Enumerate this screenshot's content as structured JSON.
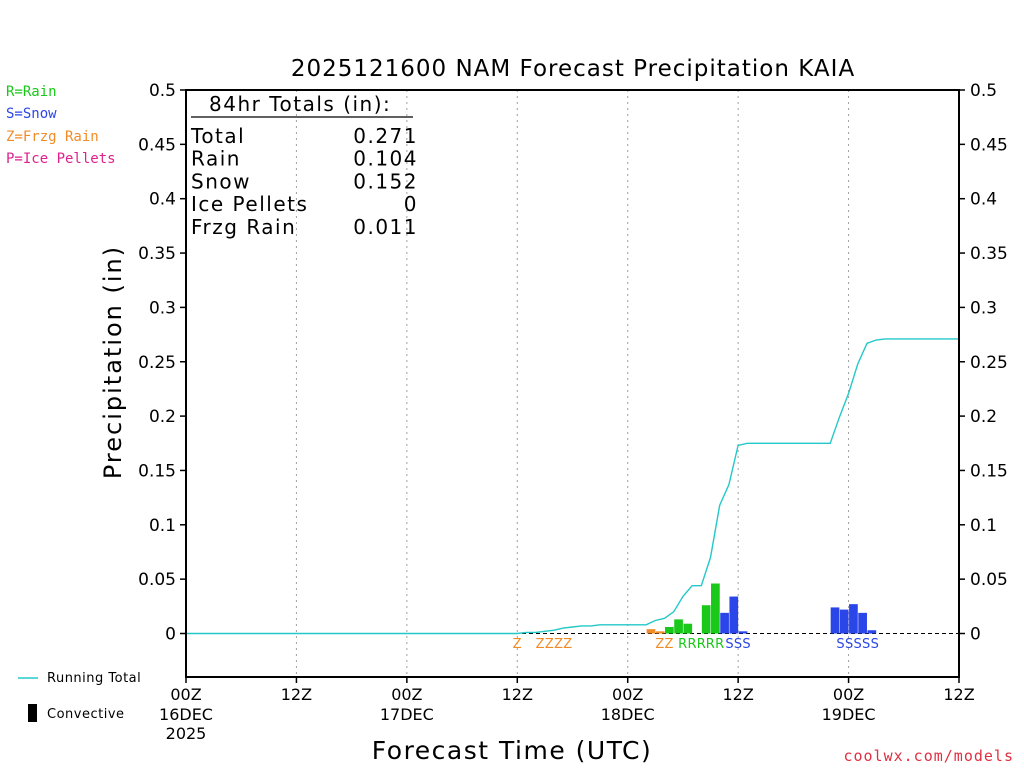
{
  "chart_data": {
    "type": "bar",
    "title": "2025121600 NAM Forecast Precipitation KAIA",
    "xlabel": "Forecast Time (UTC)",
    "ylabel": "Precipitation (in)",
    "ylim": [
      0,
      0.5
    ],
    "xlim_hours": [
      0,
      84
    ],
    "y_ticks": [
      "0",
      "0.05",
      "0.1",
      "0.15",
      "0.2",
      "0.25",
      "0.3",
      "0.35",
      "0.4",
      "0.45",
      "0.5"
    ],
    "y_tick_values": [
      0,
      0.05,
      0.1,
      0.15,
      0.2,
      0.25,
      0.3,
      0.35,
      0.4,
      0.45,
      0.5
    ],
    "x_ticks": [
      {
        "hour": 0,
        "time": "00Z",
        "date": "16DEC",
        "year": "2025"
      },
      {
        "hour": 12,
        "time": "12Z",
        "date": "",
        "year": ""
      },
      {
        "hour": 24,
        "time": "00Z",
        "date": "17DEC",
        "year": ""
      },
      {
        "hour": 36,
        "time": "12Z",
        "date": "",
        "year": ""
      },
      {
        "hour": 48,
        "time": "00Z",
        "date": "18DEC",
        "year": ""
      },
      {
        "hour": 60,
        "time": "12Z",
        "date": "",
        "year": ""
      },
      {
        "hour": 72,
        "time": "00Z",
        "date": "19DEC",
        "year": ""
      },
      {
        "hour": 84,
        "time": "12Z",
        "date": "",
        "year": ""
      }
    ],
    "legend_types": [
      {
        "label": "R=Rain",
        "color": "#19c819"
      },
      {
        "label": "S=Snow",
        "color": "#2b46e8"
      },
      {
        "label": "Z=Frzg Rain",
        "color": "#f08c28"
      },
      {
        "label": "P=Ice Pellets",
        "color": "#e0208e"
      }
    ],
    "legend_bottom": {
      "running_total": "Running Total",
      "convective": "Convective"
    },
    "totals_box": {
      "header": "84hr Totals (in):",
      "rows": [
        {
          "label": "Total",
          "value": "0.271"
        },
        {
          "label": "Rain",
          "value": "0.104"
        },
        {
          "label": "Snow",
          "value": "0.152"
        },
        {
          "label": "Ice Pellets",
          "value": "0"
        },
        {
          "label": "Frzg Rain",
          "value": "0.011"
        }
      ]
    },
    "series": [
      {
        "name": "Frzg Rain",
        "color": "#f08c28",
        "bars": [
          {
            "hour": 51,
            "value": 0.004
          },
          {
            "hour": 52,
            "value": 0.002
          }
        ]
      },
      {
        "name": "Rain",
        "color": "#19c819",
        "bars": [
          {
            "hour": 53,
            "value": 0.006
          },
          {
            "hour": 54,
            "value": 0.013
          },
          {
            "hour": 55,
            "value": 0.009
          },
          {
            "hour": 57,
            "value": 0.026
          },
          {
            "hour": 58,
            "value": 0.046
          }
        ]
      },
      {
        "name": "Snow",
        "color": "#2b46e8",
        "bars": [
          {
            "hour": 59,
            "value": 0.019
          },
          {
            "hour": 60,
            "value": 0.034
          },
          {
            "hour": 61,
            "value": 0.002
          },
          {
            "hour": 71,
            "value": 0.024
          },
          {
            "hour": 72,
            "value": 0.022
          },
          {
            "hour": 73,
            "value": 0.027
          },
          {
            "hour": 74,
            "value": 0.019
          },
          {
            "hour": 75,
            "value": 0.003
          }
        ]
      }
    ],
    "running_total": {
      "name": "Running Total",
      "color": "#24c8c8",
      "x": [
        0,
        36,
        37,
        38,
        39,
        40,
        41,
        42,
        43,
        44,
        45,
        46,
        47,
        48,
        49,
        50,
        51,
        52,
        53,
        54,
        55,
        56,
        57,
        58,
        59,
        60,
        61,
        62,
        63,
        64,
        65,
        66,
        67,
        68,
        69,
        70,
        71,
        72,
        73,
        74,
        75,
        76,
        77,
        78,
        79,
        80,
        81,
        82,
        83,
        84
      ],
      "y": [
        0,
        0,
        0.001,
        0.001,
        0.002,
        0.003,
        0.005,
        0.006,
        0.007,
        0.007,
        0.008,
        0.008,
        0.008,
        0.008,
        0.008,
        0.008,
        0.012,
        0.014,
        0.02,
        0.034,
        0.044,
        0.044,
        0.07,
        0.118,
        0.137,
        0.173,
        0.175,
        0.175,
        0.175,
        0.175,
        0.175,
        0.175,
        0.175,
        0.175,
        0.175,
        0.175,
        0.199,
        0.221,
        0.248,
        0.267,
        0.27,
        0.271,
        0.271,
        0.271,
        0.271,
        0.271,
        0.271,
        0.271,
        0.271,
        0.271
      ]
    },
    "type_labels": [
      {
        "text": "Z",
        "hour": 36,
        "color": "#f08c28"
      },
      {
        "text": "ZZZZ",
        "hour": 40,
        "color": "#f08c28"
      },
      {
        "text": "ZZ",
        "hour": 52,
        "color": "#f08c28"
      },
      {
        "text": "RRR",
        "hour": 55,
        "color": "#19c819"
      },
      {
        "text": "RR",
        "hour": 57.5,
        "color": "#19c819"
      },
      {
        "text": "SSS",
        "hour": 60,
        "color": "#2b46e8"
      },
      {
        "text": "SSSSS",
        "hour": 73,
        "color": "#2b46e8"
      }
    ]
  },
  "credit": "coolwx.com/models"
}
